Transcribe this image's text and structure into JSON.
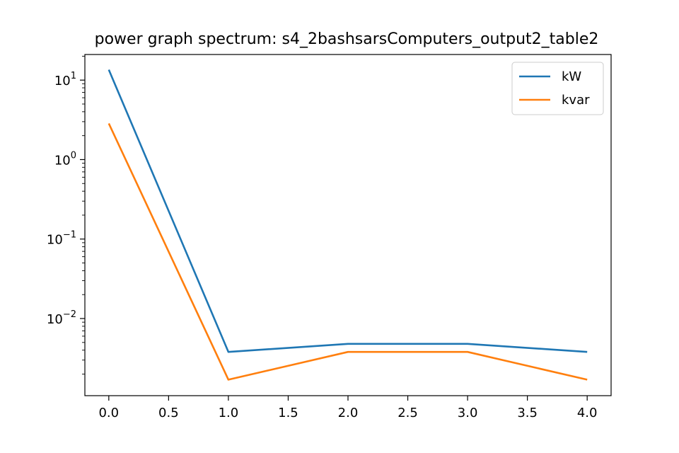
{
  "chart_data": {
    "type": "line",
    "title": "power graph spectrum: s4_2bashsarsComputers_output2_table2",
    "xlabel": "",
    "ylabel": "",
    "x": [
      0.0,
      1.0,
      2.0,
      3.0,
      4.0
    ],
    "series": [
      {
        "name": "kW",
        "color": "#1f77b4",
        "values": [
          13.5,
          0.0038,
          0.0048,
          0.0048,
          0.0038
        ]
      },
      {
        "name": "kvar",
        "color": "#ff7f0e",
        "values": [
          2.85,
          0.0017,
          0.0038,
          0.0038,
          0.0017
        ]
      }
    ],
    "xlim": [
      -0.2,
      4.2
    ],
    "ylim": [
      0.00107,
      21.0
    ],
    "yscale": "log",
    "x_ticks": [
      0.0,
      0.5,
      1.0,
      1.5,
      2.0,
      2.5,
      3.0,
      3.5,
      4.0
    ],
    "x_tick_labels": [
      "0.0",
      "0.5",
      "1.0",
      "1.5",
      "2.0",
      "2.5",
      "3.0",
      "3.5",
      "4.0"
    ],
    "y_ticks": [
      {
        "value": 10,
        "base": "10",
        "exponent": "1"
      },
      {
        "value": 1,
        "base": "10",
        "exponent": "0"
      },
      {
        "value": 0.1,
        "base": "10",
        "exponent": "−1"
      },
      {
        "value": 0.01,
        "base": "10",
        "exponent": "−2"
      }
    ],
    "grid": false,
    "legend": "top-right"
  }
}
